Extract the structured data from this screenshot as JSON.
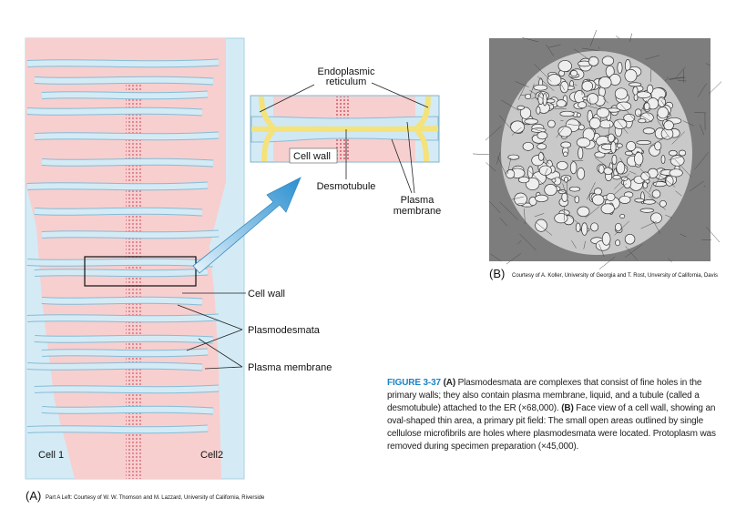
{
  "panel_a": {
    "label": "(A)",
    "credit": "Part A Left: Courtesy of W. W. Thomson and M. Lazzard, University of California, Riverside",
    "cell_1": "Cell 1",
    "cell_2": "Cell2",
    "cell_wall": "Cell wall",
    "plasmodesmata": "Plasmodesmata",
    "plasma_membrane": "Plasma membrane"
  },
  "inset": {
    "er": [
      "Endoplasmic",
      "reticulum"
    ],
    "cell_wall": "Cell wall",
    "desmotubule": "Desmotubule",
    "plasma_membrane": [
      "Plasma",
      "membrane"
    ]
  },
  "panel_b": {
    "label": "(B)",
    "credit": "Courtesy of A. Koller, University of Georgia and T. Rost, Unversity of California, Davis"
  },
  "caption": {
    "figure": "FIGURE 3-37",
    "a_label": "(A)",
    "a_text": "Plasmodesmata are complexes that consist of fine holes in the primary walls; they also contain plasma membrane, liquid, and a tubule (called a desmotubule) attached to the ER (×68,000).",
    "b_label": "(B)",
    "b_text": "Face view of a cell wall, showing an oval-shaped thin area, a primary pit field: The small open areas outlined by single cellulose microfibrils are holes where plasmodesmata were located. Protoplasm was removed during specimen preparation (×45,000)."
  }
}
